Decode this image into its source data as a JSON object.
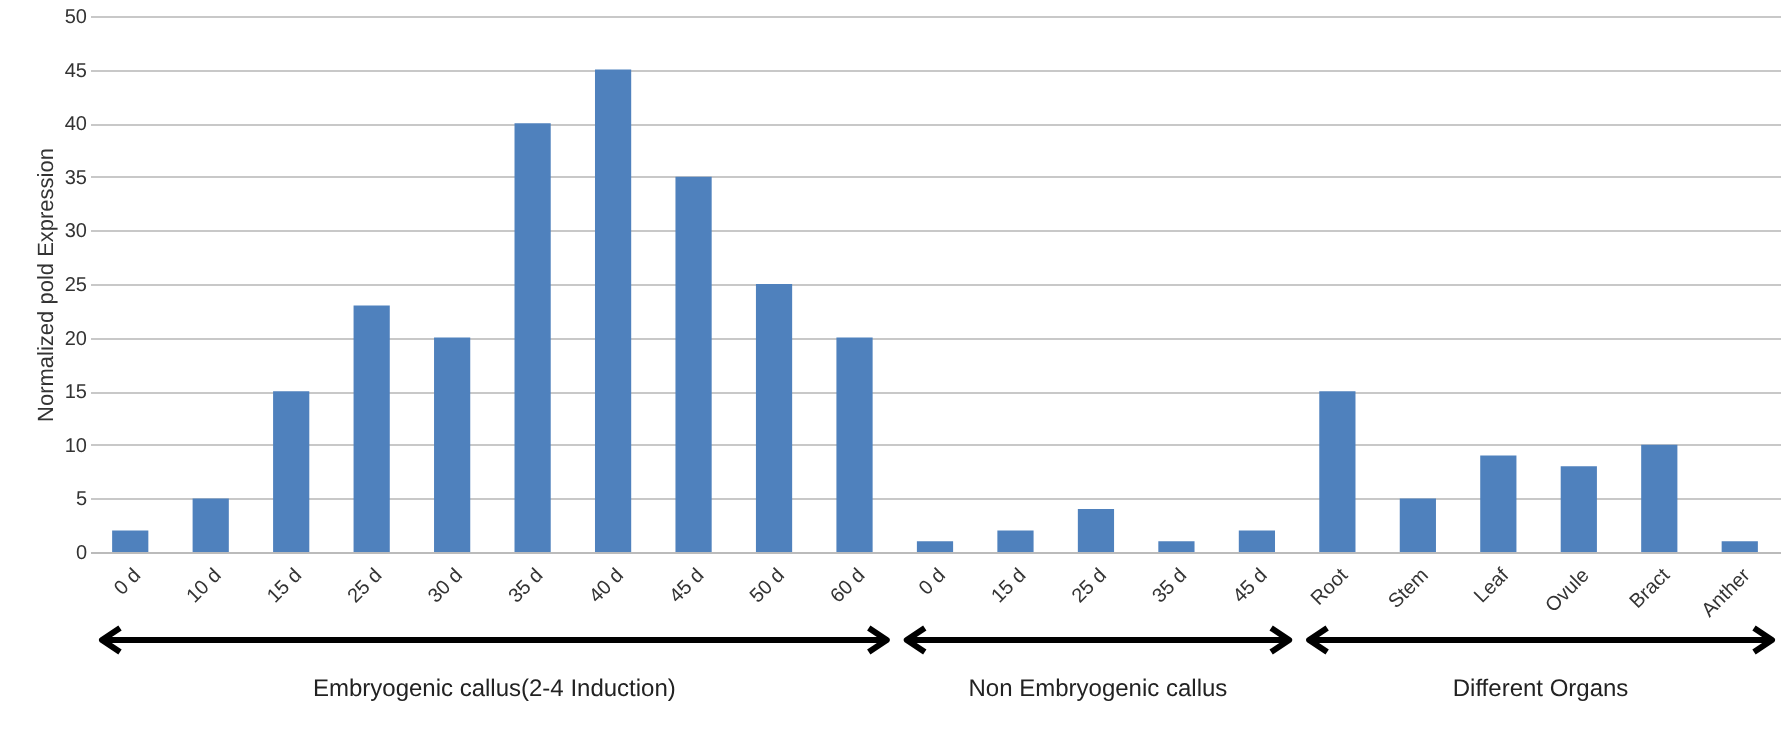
{
  "chart_data": {
    "type": "bar",
    "ylabel": "Normalized pold Expression",
    "categories": [
      "0 d",
      "10 d",
      "15 d",
      "25 d",
      "30 d",
      "35 d",
      "40 d",
      "45 d",
      "50 d",
      "60 d",
      "0 d",
      "15 d",
      "25 d",
      "35 d",
      "45 d",
      "Root",
      "Stem",
      "Leaf",
      "Ovule",
      "Bract",
      "Anther"
    ],
    "values": [
      2,
      5,
      15,
      23,
      20,
      40,
      45,
      35,
      25,
      20,
      1,
      2,
      4,
      1,
      2,
      15,
      5,
      9,
      8,
      10,
      1
    ],
    "color": "#4f81bd",
    "ylim": [
      0,
      50
    ],
    "yticks": [
      0,
      5,
      10,
      15,
      20,
      25,
      30,
      35,
      40,
      45,
      50
    ],
    "grid": "y",
    "annotations": [
      "Embryogenic callus(2-4 Induction)",
      "Non Embryogenic callus",
      "Different Organs"
    ]
  }
}
